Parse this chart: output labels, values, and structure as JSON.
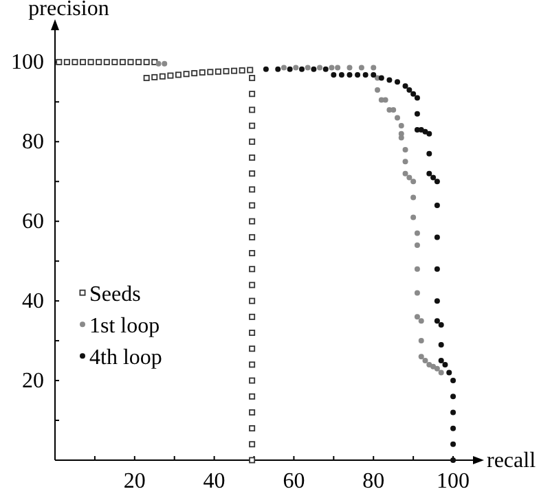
{
  "chart_data": {
    "type": "scatter",
    "xlabel": "recall",
    "ylabel": "precision",
    "xlim": [
      0,
      105
    ],
    "ylim": [
      0,
      108
    ],
    "xticks": [
      {
        "value": 10,
        "label": null
      },
      20,
      {
        "value": 30,
        "label": null
      },
      40,
      {
        "value": 50,
        "label": null
      },
      60,
      {
        "value": 70,
        "label": null
      },
      80,
      {
        "value": 90,
        "label": null
      },
      100
    ],
    "yticks": [
      {
        "value": 10,
        "label": null
      },
      20,
      {
        "value": 30,
        "label": null
      },
      40,
      {
        "value": 50,
        "label": null
      },
      60,
      {
        "value": 70,
        "label": null
      },
      80,
      {
        "value": 90,
        "label": null
      },
      100
    ],
    "legend": "bottom left",
    "grid": false,
    "series": [
      {
        "name": "Seeds",
        "color": "#333333",
        "marker": "square",
        "x": [
          1,
          3,
          5,
          7,
          9,
          11,
          13,
          15,
          17,
          19,
          21,
          23,
          25,
          23,
          25,
          27,
          29,
          31,
          33,
          35,
          37,
          39,
          41,
          43,
          45,
          47,
          49,
          49.5,
          49.5,
          49.5,
          49.5,
          49.5,
          49.5,
          49.5,
          49.5,
          49.5,
          49.5,
          49.5,
          49.5,
          49.5,
          49.5,
          49.5,
          49.5,
          49.5,
          49.5,
          49.5,
          49.5,
          49.5,
          49.5,
          49.5,
          49.5,
          49.5
        ],
        "values": [
          100,
          100,
          100,
          100,
          100,
          100,
          100,
          100,
          100,
          100,
          100,
          100,
          100,
          96,
          96.2,
          96.4,
          96.6,
          96.8,
          97,
          97.2,
          97.4,
          97.5,
          97.6,
          97.7,
          97.8,
          97.9,
          98,
          96,
          92,
          88,
          84,
          80,
          76,
          72,
          68,
          64,
          60,
          56,
          52,
          48,
          44,
          40,
          36,
          32,
          28,
          24,
          20,
          16,
          12,
          8,
          4,
          0
        ]
      },
      {
        "name": "1st loop",
        "color": "#8a8a8a",
        "marker": "circle",
        "x": [
          26,
          27.5,
          57.5,
          60.5,
          63.5,
          66.5,
          69.5,
          71,
          74,
          77,
          80,
          81,
          81,
          82,
          83,
          84,
          85,
          86,
          87,
          87,
          87,
          88,
          88,
          88,
          89,
          90,
          90,
          90,
          91,
          91,
          91,
          91,
          91,
          92,
          92,
          92,
          93,
          94,
          95,
          96,
          97
        ],
        "values": [
          99.6,
          99.6,
          98.6,
          98.6,
          98.6,
          98.6,
          98.6,
          98.6,
          98.6,
          98.6,
          98.6,
          96,
          93,
          90.5,
          90.5,
          88,
          88,
          86,
          84,
          82,
          81,
          78,
          75,
          72,
          71,
          70,
          66,
          61,
          57,
          54,
          48,
          42,
          36,
          35,
          30,
          26,
          25,
          24,
          23.5,
          23,
          22
        ]
      },
      {
        "name": "4th loop",
        "color": "#111111",
        "marker": "circle",
        "x": [
          53,
          56,
          59,
          62,
          65,
          68,
          70,
          72,
          74,
          76,
          78,
          80,
          82,
          84,
          86,
          88,
          89,
          90,
          91,
          91,
          91,
          92,
          93,
          94,
          94,
          94,
          95,
          96,
          96,
          96,
          96,
          96,
          96,
          97,
          97,
          97,
          98,
          99,
          100,
          100,
          100,
          100,
          100,
          100
        ],
        "values": [
          98.2,
          98.2,
          98.2,
          98.2,
          98.2,
          98.2,
          96.8,
          96.8,
          96.8,
          96.8,
          96.8,
          96.8,
          96,
          95.5,
          95,
          94,
          93,
          92,
          91,
          87,
          83,
          83,
          82.5,
          82,
          77,
          72,
          71,
          70,
          64,
          56,
          48,
          40,
          35,
          34,
          29,
          25,
          24,
          22,
          20,
          16,
          12,
          8,
          4,
          0
        ]
      }
    ]
  }
}
